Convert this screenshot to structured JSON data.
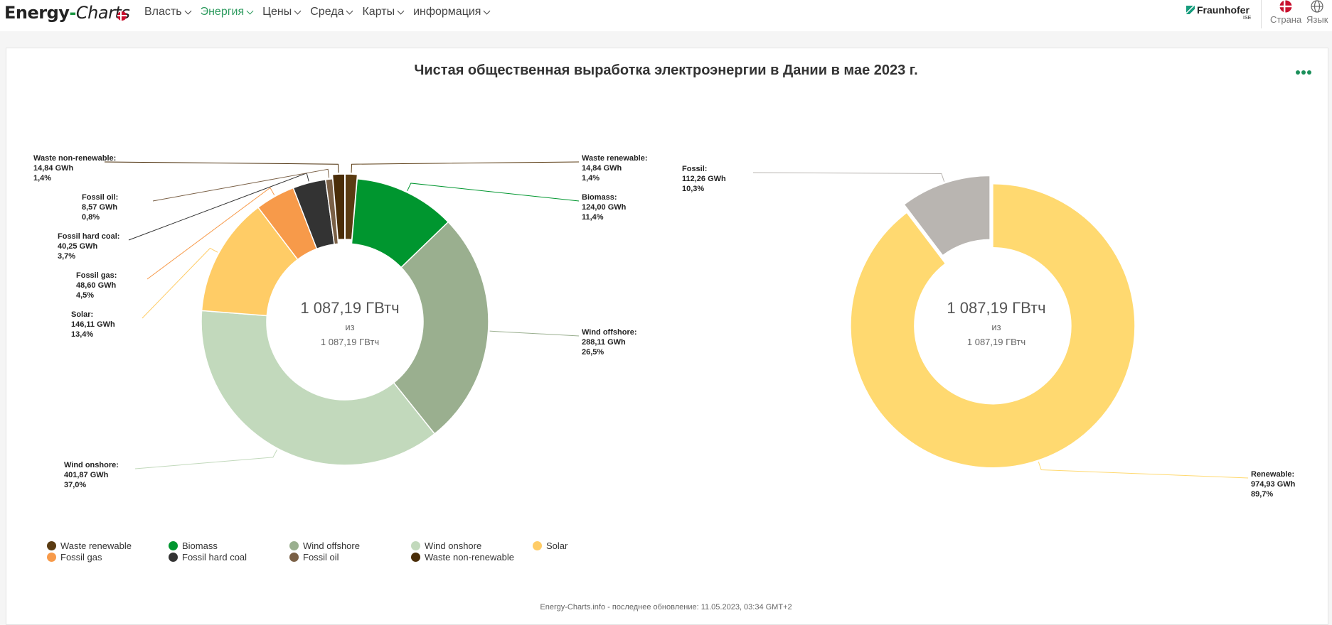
{
  "header": {
    "logo_part1": "Energy",
    "logo_dash": "-",
    "logo_part2": "Charts",
    "nav": [
      {
        "label": "Власть"
      },
      {
        "label": "Энергия",
        "active": true
      },
      {
        "label": "Цены"
      },
      {
        "label": "Среда"
      },
      {
        "label": "Карты"
      },
      {
        "label": "информация"
      }
    ],
    "partner": "Fraunhofer",
    "partner_sub": "ISE",
    "country_label": "Страна",
    "language_label": "Язык"
  },
  "chart_title": "Чистая общественная выработка электроэнергии в Дании в мае 2023 г.",
  "chart_data": [
    {
      "type": "pie",
      "donut": true,
      "center": {
        "value": "1 087,19 ГВтч",
        "of": "из",
        "total": "1 087,19 ГВтч"
      },
      "slices": [
        {
          "name": "Waste renewable",
          "value": 14.84,
          "value_text": "14,84 GWh",
          "percent": "1,4%",
          "color": "#5a3b12"
        },
        {
          "name": "Biomass",
          "value": 124.0,
          "value_text": "124,00 GWh",
          "percent": "11,4%",
          "color": "#00962f"
        },
        {
          "name": "Wind offshore",
          "value": 288.11,
          "value_text": "288,11 GWh",
          "percent": "26,5%",
          "color": "#9aaf8f"
        },
        {
          "name": "Wind onshore",
          "value": 401.87,
          "value_text": "401,87 GWh",
          "percent": "37,0%",
          "color": "#c2d9bc"
        },
        {
          "name": "Solar",
          "value": 146.11,
          "value_text": "146,11 GWh",
          "percent": "13,4%",
          "color": "#ffcc66"
        },
        {
          "name": "Fossil gas",
          "value": 48.6,
          "value_text": "48,60 GWh",
          "percent": "4,5%",
          "color": "#f79a4a"
        },
        {
          "name": "Fossil hard coal",
          "value": 40.25,
          "value_text": "40,25 GWh",
          "percent": "3,7%",
          "color": "#333333"
        },
        {
          "name": "Fossil oil",
          "value": 8.57,
          "value_text": "8,57 GWh",
          "percent": "0,8%",
          "color": "#7a6046"
        },
        {
          "name": "Waste non-renewable",
          "value": 14.84,
          "value_text": "14,84 GWh",
          "percent": "1,4%",
          "color": "#4a2d08"
        }
      ]
    },
    {
      "type": "pie",
      "donut": true,
      "center": {
        "value": "1 087,19 ГВтч",
        "of": "из",
        "total": "1 087,19 ГВтч"
      },
      "slices": [
        {
          "name": "Renewable",
          "value": 974.93,
          "value_text": "974,93 GWh",
          "percent": "89,7%",
          "color": "#ffd970"
        },
        {
          "name": "Fossil",
          "value": 112.26,
          "value_text": "112,26 GWh",
          "percent": "10,3%",
          "color": "#b9b5b1"
        }
      ]
    }
  ],
  "legend": [
    {
      "name": "Waste renewable",
      "color": "#5a3b12"
    },
    {
      "name": "Biomass",
      "color": "#00962f"
    },
    {
      "name": "Wind offshore",
      "color": "#9aaf8f"
    },
    {
      "name": "Wind onshore",
      "color": "#c2d9bc"
    },
    {
      "name": "Solar",
      "color": "#ffcc66"
    },
    {
      "name": "Fossil gas",
      "color": "#f79a4a"
    },
    {
      "name": "Fossil hard coal",
      "color": "#333333"
    },
    {
      "name": "Fossil oil",
      "color": "#7a6046"
    },
    {
      "name": "Waste non-renewable",
      "color": "#4a2d08"
    }
  ],
  "footer": "Energy-Charts.info - последнее обновление: 11.05.2023, 03:34 GMT+2"
}
